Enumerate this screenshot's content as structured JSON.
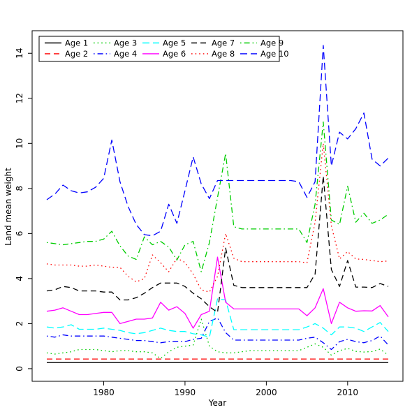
{
  "figure": {
    "background": "#ffffff"
  },
  "chart_data": {
    "type": "line",
    "title": "",
    "xlabel": "Year",
    "ylabel": "Land mean weight",
    "grid": false,
    "legend_position": "top-left",
    "xlim": [
      1971.2,
      2016.8
    ],
    "ylim": [
      -0.56,
      15.0
    ],
    "x_ticks": [
      1980,
      1990,
      2000,
      2010
    ],
    "y_ticks": [
      0,
      2,
      4,
      6,
      8,
      10,
      12,
      14
    ],
    "frame_color": "#000000",
    "x": [
      1973,
      1974,
      1975,
      1976,
      1977,
      1978,
      1979,
      1980,
      1981,
      1982,
      1983,
      1984,
      1985,
      1986,
      1987,
      1988,
      1989,
      1990,
      1991,
      1992,
      1993,
      1994,
      1995,
      1996,
      1997,
      1998,
      1999,
      2000,
      2001,
      2002,
      2003,
      2004,
      2005,
      2006,
      2007,
      2008,
      2009,
      2010,
      2011,
      2012,
      2013,
      2014,
      2015
    ],
    "series": [
      {
        "name": "Age 1",
        "color": "#000000",
        "dash": "solid",
        "values": [
          0.27,
          0.27,
          0.27,
          0.27,
          0.27,
          0.27,
          0.27,
          0.27,
          0.27,
          0.27,
          0.27,
          0.27,
          0.27,
          0.27,
          0.27,
          0.27,
          0.27,
          0.27,
          0.27,
          0.27,
          0.27,
          0.27,
          0.27,
          0.27,
          0.27,
          0.27,
          0.27,
          0.27,
          0.27,
          0.27,
          0.27,
          0.27,
          0.27,
          0.27,
          0.27,
          0.27,
          0.27,
          0.27,
          0.27,
          0.27,
          0.27,
          0.27,
          0.27
        ]
      },
      {
        "name": "Age 2",
        "color": "#FF0000",
        "dash": "dashed",
        "values": [
          0.43,
          0.43,
          0.43,
          0.43,
          0.43,
          0.43,
          0.43,
          0.43,
          0.43,
          0.43,
          0.43,
          0.43,
          0.43,
          0.43,
          0.43,
          0.43,
          0.43,
          0.43,
          0.43,
          0.43,
          0.43,
          0.43,
          0.43,
          0.43,
          0.43,
          0.43,
          0.43,
          0.43,
          0.43,
          0.43,
          0.43,
          0.43,
          0.43,
          0.43,
          0.43,
          0.43,
          0.43,
          0.43,
          0.43,
          0.43,
          0.43,
          0.43,
          0.43
        ]
      },
      {
        "name": "Age 3",
        "color": "#00CD00",
        "dash": "dotted",
        "values": [
          0.7,
          0.65,
          0.7,
          0.75,
          0.85,
          0.85,
          0.85,
          0.8,
          0.75,
          0.8,
          0.8,
          0.75,
          0.75,
          0.7,
          0.45,
          0.75,
          0.95,
          1.0,
          1.05,
          2.2,
          1.0,
          0.75,
          0.7,
          0.7,
          0.75,
          0.8,
          0.8,
          0.8,
          0.8,
          0.8,
          0.8,
          0.8,
          0.95,
          1.1,
          0.95,
          0.6,
          0.8,
          0.9,
          0.77,
          0.74,
          0.76,
          0.87,
          0.6
        ]
      },
      {
        "name": "Age 4",
        "color": "#0000FF",
        "dash": "dashdot",
        "values": [
          1.45,
          1.4,
          1.5,
          1.45,
          1.45,
          1.45,
          1.45,
          1.45,
          1.4,
          1.35,
          1.3,
          1.25,
          1.25,
          1.2,
          1.15,
          1.2,
          1.2,
          1.2,
          1.3,
          1.35,
          2.1,
          2.25,
          1.6,
          1.27,
          1.27,
          1.27,
          1.27,
          1.27,
          1.27,
          1.27,
          1.27,
          1.27,
          1.35,
          1.4,
          1.15,
          0.85,
          1.2,
          1.3,
          1.2,
          1.15,
          1.25,
          1.45,
          1.05
        ]
      },
      {
        "name": "Age 5",
        "color": "#00FFFF",
        "dash": "longdash",
        "values": [
          1.85,
          1.8,
          1.85,
          1.95,
          1.75,
          1.75,
          1.75,
          1.8,
          1.75,
          1.7,
          1.6,
          1.55,
          1.6,
          1.7,
          1.8,
          1.7,
          1.65,
          1.65,
          1.55,
          1.5,
          1.4,
          3.1,
          3.05,
          1.73,
          1.73,
          1.73,
          1.73,
          1.73,
          1.73,
          1.73,
          1.73,
          1.73,
          1.85,
          2.0,
          1.8,
          1.5,
          1.85,
          1.85,
          1.8,
          1.65,
          1.85,
          2.05,
          1.65
        ]
      },
      {
        "name": "Age 6",
        "color": "#FF00FF",
        "dash": "solid",
        "values": [
          2.55,
          2.6,
          2.7,
          2.55,
          2.4,
          2.4,
          2.45,
          2.5,
          2.5,
          2.0,
          2.1,
          2.2,
          2.2,
          2.25,
          2.95,
          2.6,
          2.75,
          2.45,
          1.8,
          2.4,
          2.55,
          4.95,
          2.95,
          2.65,
          2.65,
          2.65,
          2.65,
          2.65,
          2.65,
          2.65,
          2.65,
          2.65,
          2.35,
          2.7,
          3.55,
          2.0,
          2.95,
          2.7,
          2.55,
          2.57,
          2.56,
          2.8,
          2.3
        ]
      },
      {
        "name": "Age 7",
        "color": "#000000",
        "dash": "dashed",
        "values": [
          3.45,
          3.5,
          3.65,
          3.6,
          3.45,
          3.45,
          3.45,
          3.4,
          3.4,
          3.05,
          3.05,
          3.15,
          3.35,
          3.6,
          3.8,
          3.8,
          3.8,
          3.65,
          3.35,
          3.1,
          2.75,
          2.5,
          5.35,
          3.7,
          3.6,
          3.6,
          3.6,
          3.6,
          3.6,
          3.6,
          3.6,
          3.6,
          3.6,
          4.2,
          8.55,
          4.4,
          3.65,
          4.8,
          3.62,
          3.62,
          3.6,
          3.78,
          3.65
        ]
      },
      {
        "name": "Age 8",
        "color": "#FF0000",
        "dash": "dotted",
        "values": [
          4.65,
          4.6,
          4.6,
          4.6,
          4.55,
          4.55,
          4.6,
          4.55,
          4.5,
          4.5,
          4.1,
          3.85,
          4.0,
          5.05,
          4.7,
          4.3,
          4.9,
          4.72,
          4.2,
          3.5,
          3.4,
          4.1,
          6.0,
          4.9,
          4.75,
          4.75,
          4.75,
          4.75,
          4.75,
          4.75,
          4.75,
          4.75,
          4.7,
          6.5,
          10.0,
          6.35,
          4.87,
          5.2,
          4.87,
          4.85,
          4.8,
          4.75,
          4.78
        ]
      },
      {
        "name": "Age 9",
        "color": "#00CD00",
        "dash": "dashdot",
        "values": [
          5.6,
          5.55,
          5.5,
          5.55,
          5.6,
          5.65,
          5.65,
          5.75,
          6.1,
          5.45,
          5.0,
          4.85,
          5.85,
          5.5,
          5.65,
          5.4,
          4.82,
          5.5,
          5.65,
          4.3,
          5.6,
          7.6,
          9.55,
          6.3,
          6.2,
          6.2,
          6.2,
          6.2,
          6.2,
          6.2,
          6.2,
          6.2,
          5.6,
          7.3,
          10.95,
          6.6,
          6.4,
          8.1,
          6.5,
          6.9,
          6.45,
          6.6,
          6.85
        ]
      },
      {
        "name": "Age 10",
        "color": "#0000FF",
        "dash": "longdash",
        "values": [
          7.5,
          7.75,
          8.15,
          7.9,
          7.8,
          7.85,
          8.05,
          8.45,
          10.15,
          8.3,
          7.2,
          6.4,
          5.95,
          5.9,
          6.1,
          7.3,
          6.45,
          7.9,
          9.4,
          8.2,
          7.55,
          8.35,
          8.35,
          8.35,
          8.35,
          8.35,
          8.35,
          8.35,
          8.35,
          8.35,
          8.35,
          8.3,
          7.6,
          8.3,
          14.35,
          9.0,
          10.5,
          10.2,
          10.65,
          11.35,
          9.3,
          9.0,
          9.35
        ]
      }
    ]
  }
}
